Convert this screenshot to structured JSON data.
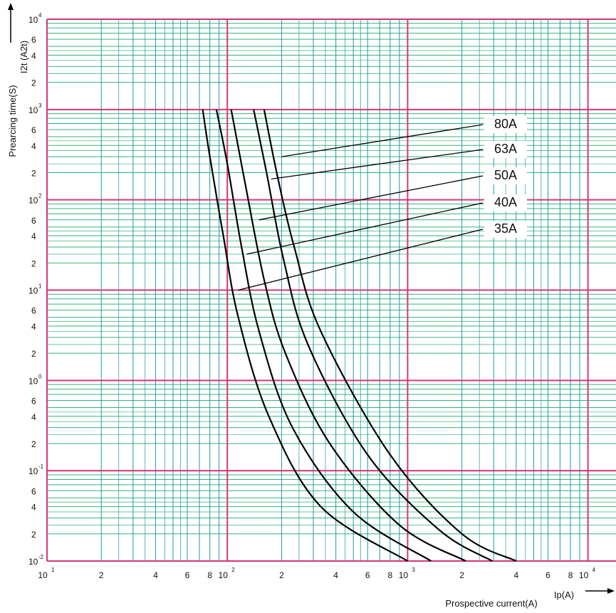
{
  "chart_data": {
    "type": "line",
    "xscale": "log",
    "yscale": "log",
    "xlim": [
      10,
      10000
    ],
    "ylim": [
      0.01,
      10000
    ],
    "xlabel": "Prospective current(A)",
    "xunit_label": "Ip(A)",
    "ylabel": "Prearcing time(S)",
    "ylabel2": "I2t (A2t)",
    "x_major_ticks": [
      {
        "base": "10",
        "exp": "1"
      },
      {
        "base": "10",
        "exp": "2"
      },
      {
        "base": "10",
        "exp": "3"
      },
      {
        "base": "10",
        "exp": "4"
      }
    ],
    "x_minor_ticks": [
      "2",
      "4",
      "6",
      "8"
    ],
    "y_major_ticks": [
      {
        "base": "10",
        "exp": "-2"
      },
      {
        "base": "10",
        "exp": "-1"
      },
      {
        "base": "10",
        "exp": "0"
      },
      {
        "base": "10",
        "exp": "1"
      },
      {
        "base": "10",
        "exp": "2"
      },
      {
        "base": "10",
        "exp": "3"
      },
      {
        "base": "10",
        "exp": "4"
      }
    ],
    "y_minor_ticks": [
      "2",
      "4",
      "6"
    ],
    "grid": true,
    "series": [
      {
        "name": "35A",
        "points": [
          [
            73,
            1000
          ],
          [
            80,
            300
          ],
          [
            95,
            40
          ],
          [
            115,
            5
          ],
          [
            170,
            0.4
          ],
          [
            330,
            0.04
          ],
          [
            1000,
            0.01
          ]
        ]
      },
      {
        "name": "40A",
        "points": [
          [
            87,
            1000
          ],
          [
            100,
            250
          ],
          [
            120,
            30
          ],
          [
            150,
            3.5
          ],
          [
            230,
            0.3
          ],
          [
            500,
            0.035
          ],
          [
            1350,
            0.01
          ]
        ]
      },
      {
        "name": "50A",
        "points": [
          [
            105,
            1000
          ],
          [
            125,
            160
          ],
          [
            160,
            13
          ],
          [
            210,
            2
          ],
          [
            370,
            0.2
          ],
          [
            900,
            0.025
          ],
          [
            2100,
            0.01
          ]
        ]
      },
      {
        "name": "63A",
        "points": [
          [
            140,
            1000
          ],
          [
            165,
            200
          ],
          [
            205,
            22
          ],
          [
            280,
            2.5
          ],
          [
            600,
            0.15
          ],
          [
            1500,
            0.022
          ],
          [
            2950,
            0.01
          ]
        ]
      },
      {
        "name": "80A",
        "points": [
          [
            160,
            1000
          ],
          [
            190,
            180
          ],
          [
            235,
            30
          ],
          [
            330,
            3.5
          ],
          [
            800,
            0.15
          ],
          [
            2000,
            0.02
          ],
          [
            4000,
            0.01
          ]
        ]
      }
    ],
    "labels": [
      {
        "text": "80A",
        "anchor": [
          200,
          300
        ]
      },
      {
        "text": "63A",
        "anchor": [
          175,
          170
        ]
      },
      {
        "text": "50A",
        "anchor": [
          150,
          60
        ]
      },
      {
        "text": "40A",
        "anchor": [
          128,
          25
        ]
      },
      {
        "text": "35A",
        "anchor": [
          115,
          10
        ]
      }
    ],
    "colors": {
      "grid_major": "#d4367a",
      "grid_minor": "#1a9aa8",
      "grid_sub": "#35b27a",
      "curve": "#000000"
    }
  }
}
